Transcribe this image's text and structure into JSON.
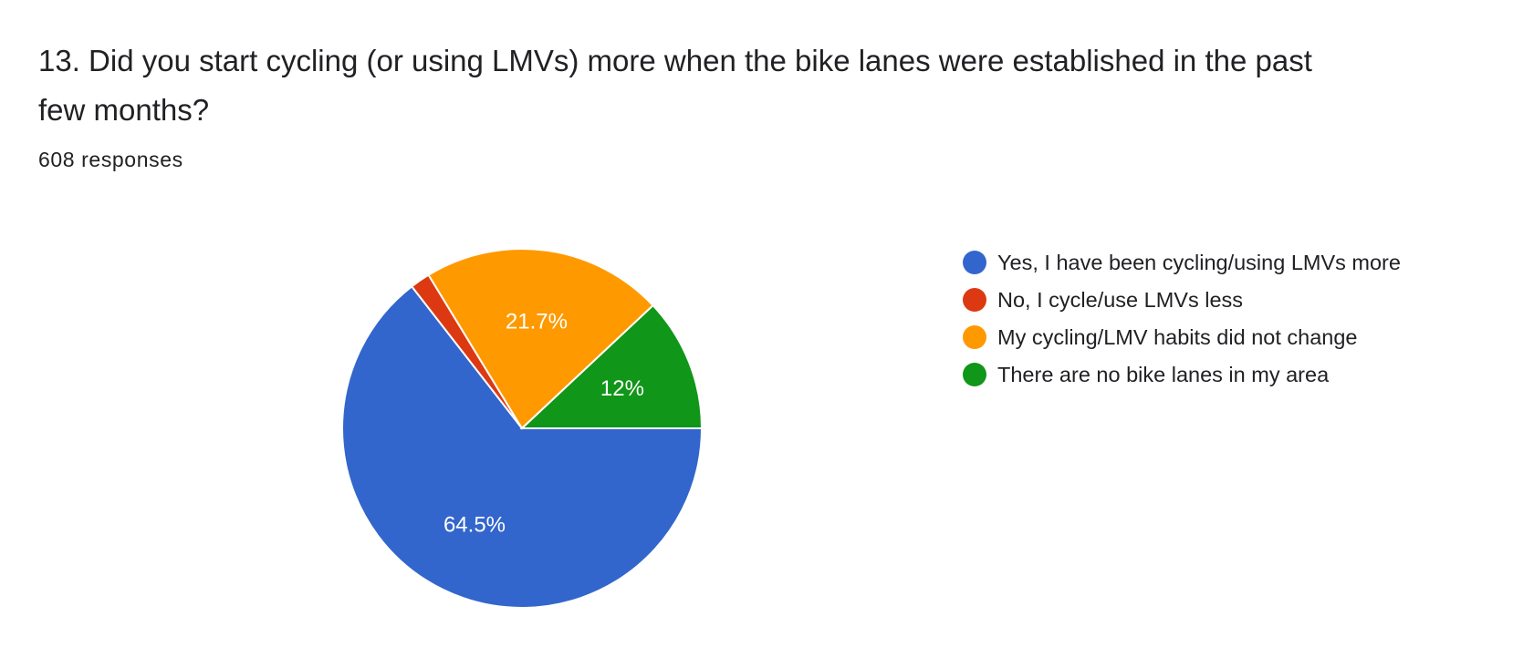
{
  "question": {
    "title": "13. Did you start cycling (or using LMVs) more when the bike lanes were established in the past few months?",
    "responses": "608 responses"
  },
  "chart_data": {
    "type": "pie",
    "legend_position": "right",
    "slices": [
      {
        "label": "Yes, I have been cycling/using LMVs more",
        "value": 64.5,
        "color": "#3366cc",
        "display": "64.5%"
      },
      {
        "label": "No, I cycle/use LMVs less",
        "value": 1.8,
        "color": "#dc3912",
        "display": ""
      },
      {
        "label": "My cycling/LMV habits did not change",
        "value": 21.7,
        "color": "#ff9900",
        "display": "21.7%"
      },
      {
        "label": "There are no bike lanes in my area",
        "value": 12,
        "color": "#109618",
        "display": "12%"
      }
    ]
  }
}
